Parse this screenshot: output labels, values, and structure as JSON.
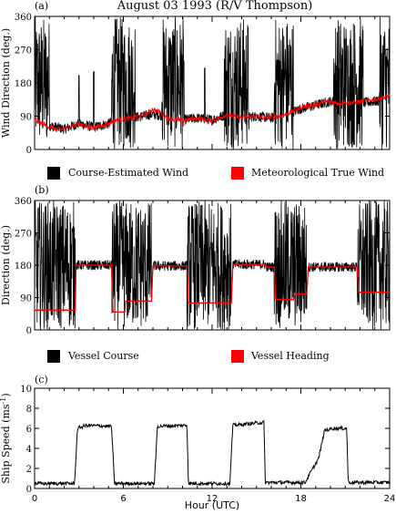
{
  "figure_title": "August 03 1993 (R/V Thompson)",
  "x_axis": {
    "label": "Hour (UTC)",
    "range": [
      0,
      24
    ],
    "ticks": [
      "0",
      "6",
      "12",
      "18",
      "24"
    ]
  },
  "colors": {
    "black": "#000000",
    "red": "#ff0000"
  },
  "chart_data": [
    {
      "type": "line",
      "panel_label": "(a)",
      "ylabel": "Wind Direction (deg.)",
      "ylim": [
        0,
        360
      ],
      "y_ticks": [
        "0",
        "90",
        "180",
        "270",
        "360"
      ],
      "xlim": [
        0,
        24
      ],
      "legend": [
        "Course-Estimated Wind",
        "Meteorological True Wind"
      ],
      "series": [
        {
          "name": "Course-Estimated Wind",
          "color": "#000000",
          "style": "noisy",
          "baseline": [
            [
              0,
              80
            ],
            [
              1,
              65
            ],
            [
              2,
              55
            ],
            [
              3,
              70
            ],
            [
              4,
              60
            ],
            [
              5,
              70
            ],
            [
              6,
              85
            ],
            [
              7,
              88
            ],
            [
              8,
              95
            ],
            [
              9,
              90
            ],
            [
              10,
              80
            ],
            [
              11,
              85
            ],
            [
              12,
              80
            ],
            [
              13,
              95
            ],
            [
              14,
              85
            ],
            [
              15,
              90
            ],
            [
              16,
              85
            ],
            [
              17,
              95
            ],
            [
              18,
              110
            ],
            [
              19,
              120
            ],
            [
              20,
              130
            ],
            [
              21,
              130
            ],
            [
              22,
              125
            ],
            [
              23,
              130
            ],
            [
              24,
              135
            ]
          ],
          "burst_intervals": [
            [
              0,
              1
            ],
            [
              5.2,
              6.8
            ],
            [
              8.6,
              10.1
            ],
            [
              12.8,
              14.5
            ],
            [
              16.2,
              17.5
            ],
            [
              20.2,
              22.2
            ],
            [
              23.3,
              24
            ]
          ],
          "burst_range": [
            0,
            360
          ],
          "burst_spikes": [
            [
              3.0,
              200
            ],
            [
              4.0,
              210
            ],
            [
              11.5,
              220
            ]
          ]
        },
        {
          "name": "Meteorological True Wind",
          "color": "#ff0000",
          "style": "light-noise",
          "values": [
            [
              0,
              80
            ],
            [
              0.5,
              70
            ],
            [
              1,
              60
            ],
            [
              1.5,
              55
            ],
            [
              2,
              55
            ],
            [
              2.5,
              65
            ],
            [
              3,
              70
            ],
            [
              3.5,
              62
            ],
            [
              4,
              58
            ],
            [
              4.5,
              65
            ],
            [
              5,
              70
            ],
            [
              5.5,
              80
            ],
            [
              6,
              82
            ],
            [
              6.5,
              85
            ],
            [
              7,
              90
            ],
            [
              7.5,
              95
            ],
            [
              8,
              110
            ],
            [
              8.5,
              100
            ],
            [
              9,
              85
            ],
            [
              9.5,
              80
            ],
            [
              10,
              78
            ],
            [
              10.5,
              82
            ],
            [
              11,
              85
            ],
            [
              11.5,
              80
            ],
            [
              12,
              78
            ],
            [
              12.5,
              85
            ],
            [
              13,
              95
            ],
            [
              13.5,
              90
            ],
            [
              14,
              85
            ],
            [
              14.5,
              88
            ],
            [
              15,
              90
            ],
            [
              15.5,
              85
            ],
            [
              16,
              88
            ],
            [
              16.5,
              90
            ],
            [
              17,
              95
            ],
            [
              17.5,
              105
            ],
            [
              18,
              115
            ],
            [
              18.5,
              118
            ],
            [
              19,
              120
            ],
            [
              19.5,
              128
            ],
            [
              20,
              130
            ],
            [
              20.5,
              125
            ],
            [
              21,
              128
            ],
            [
              21.5,
              125
            ],
            [
              22,
              130
            ],
            [
              22.5,
              132
            ],
            [
              23,
              135
            ],
            [
              23.5,
              140
            ],
            [
              24,
              145
            ]
          ]
        }
      ]
    },
    {
      "type": "line",
      "panel_label": "(b)",
      "ylabel": "Direction (deg.)",
      "ylim": [
        0,
        360
      ],
      "y_ticks": [
        "0",
        "90",
        "180",
        "270",
        "360"
      ],
      "xlim": [
        0,
        24
      ],
      "legend": [
        "Vessel Course",
        "Vessel Heading"
      ],
      "series": [
        {
          "name": "Vessel Course",
          "color": "#000000",
          "style": "noisy",
          "baseline": [
            [
              0,
              55
            ],
            [
              2.75,
              55
            ],
            [
              2.8,
              180
            ],
            [
              5.2,
              180
            ],
            [
              5.3,
              50
            ],
            [
              6.1,
              50
            ],
            [
              6.15,
              80
            ],
            [
              7.9,
              80
            ],
            [
              8.0,
              178
            ],
            [
              10.3,
              178
            ],
            [
              10.4,
              75
            ],
            [
              13.3,
              75
            ],
            [
              13.4,
              182
            ],
            [
              15.6,
              182
            ],
            [
              15.7,
              175
            ],
            [
              16.2,
              175
            ],
            [
              16.3,
              85
            ],
            [
              17.5,
              85
            ],
            [
              17.6,
              100
            ],
            [
              18.4,
              100
            ],
            [
              18.5,
              175
            ],
            [
              21.8,
              175
            ],
            [
              21.9,
              105
            ],
            [
              24,
              105
            ]
          ],
          "burst_intervals": [
            [
              0,
              2.75
            ],
            [
              5.2,
              7.9
            ],
            [
              10.3,
              13.3
            ],
            [
              16.2,
              18.4
            ],
            [
              21.8,
              24
            ]
          ],
          "burst_range": [
            0,
            360
          ]
        },
        {
          "name": "Vessel Heading",
          "color": "#ff0000",
          "style": "step",
          "values": [
            [
              0,
              55
            ],
            [
              2.75,
              55
            ],
            [
              2.8,
              180
            ],
            [
              5.2,
              180
            ],
            [
              5.3,
              50
            ],
            [
              6.1,
              50
            ],
            [
              6.15,
              80
            ],
            [
              7.9,
              80
            ],
            [
              8.0,
              178
            ],
            [
              10.3,
              178
            ],
            [
              10.4,
              75
            ],
            [
              13.3,
              75
            ],
            [
              13.4,
              182
            ],
            [
              15.6,
              182
            ],
            [
              15.7,
              175
            ],
            [
              16.2,
              175
            ],
            [
              16.3,
              85
            ],
            [
              17.5,
              85
            ],
            [
              17.6,
              100
            ],
            [
              18.4,
              100
            ],
            [
              18.5,
              175
            ],
            [
              21.8,
              175
            ],
            [
              21.9,
              105
            ],
            [
              24,
              105
            ]
          ]
        }
      ]
    },
    {
      "type": "line",
      "panel_label": "(c)",
      "ylabel": "Ship Speed (ms",
      "ylabel_sup": "-1",
      "ylabel_end": ")",
      "ylim": [
        0,
        10
      ],
      "y_ticks": [
        "0",
        "2",
        "4",
        "6",
        "8",
        "10"
      ],
      "xlim": [
        0,
        24
      ],
      "series": [
        {
          "name": "Ship Speed",
          "color": "#000000",
          "style": "light-noise",
          "values": [
            [
              0,
              0.5
            ],
            [
              2.7,
              0.5
            ],
            [
              2.9,
              6.0
            ],
            [
              3.5,
              6.3
            ],
            [
              5.2,
              6.2
            ],
            [
              5.4,
              0.5
            ],
            [
              8.1,
              0.5
            ],
            [
              8.3,
              6.2
            ],
            [
              10.3,
              6.3
            ],
            [
              10.4,
              0.5
            ],
            [
              13.2,
              0.5
            ],
            [
              13.4,
              6.3
            ],
            [
              15.5,
              6.6
            ],
            [
              15.6,
              0.6
            ],
            [
              18.3,
              0.6
            ],
            [
              18.5,
              1.2
            ],
            [
              19.2,
              3.0
            ],
            [
              19.6,
              5.8
            ],
            [
              20.2,
              6.0
            ],
            [
              21.1,
              6.0
            ],
            [
              21.2,
              0.6
            ],
            [
              24,
              0.6
            ]
          ]
        }
      ]
    }
  ]
}
